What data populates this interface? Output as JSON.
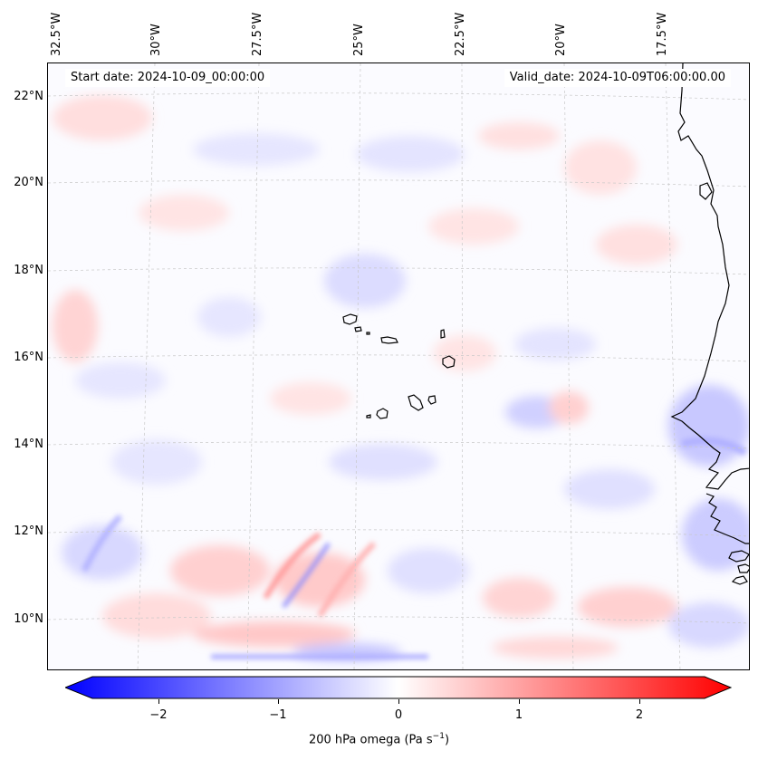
{
  "map": {
    "start_date": "Start date: 2024-10-09_00:00:00",
    "valid_date": "Valid_date: 2024-10-09T06:00:00.00",
    "lon_labels": [
      "32.5°W",
      "30°W",
      "27.5°W",
      "25°W",
      "22.5°W",
      "20°W",
      "17.5°W"
    ],
    "lat_labels": [
      "22°N",
      "20°N",
      "18°N",
      "16°N",
      "14°N",
      "12°N",
      "10°N"
    ],
    "colors": {
      "negative": "#0000ff",
      "neutral": "#ffffff",
      "positive": "#ff0000",
      "coast": "#000000"
    }
  },
  "colorbar": {
    "ticks": [
      "−2",
      "−1",
      "0",
      "1",
      "2"
    ],
    "tick_values": [
      -2,
      -1,
      0,
      1,
      2
    ],
    "range": [
      -2.5,
      2.5
    ],
    "label_main": "200 hPa omega (Pa s",
    "label_sup": "−1",
    "label_end": ")"
  },
  "chart_data": {
    "type": "heatmap",
    "title": "200 hPa omega",
    "variable": "200 hPa omega (Pa s−1)",
    "colormap": "bwr",
    "vmin": -2.5,
    "vmax": 2.5,
    "lon_ticks": [
      -32.5,
      -30,
      -27.5,
      -25,
      -22.5,
      -20,
      -17.5
    ],
    "lat_ticks": [
      22,
      20,
      18,
      16,
      14,
      12,
      10
    ]
  }
}
